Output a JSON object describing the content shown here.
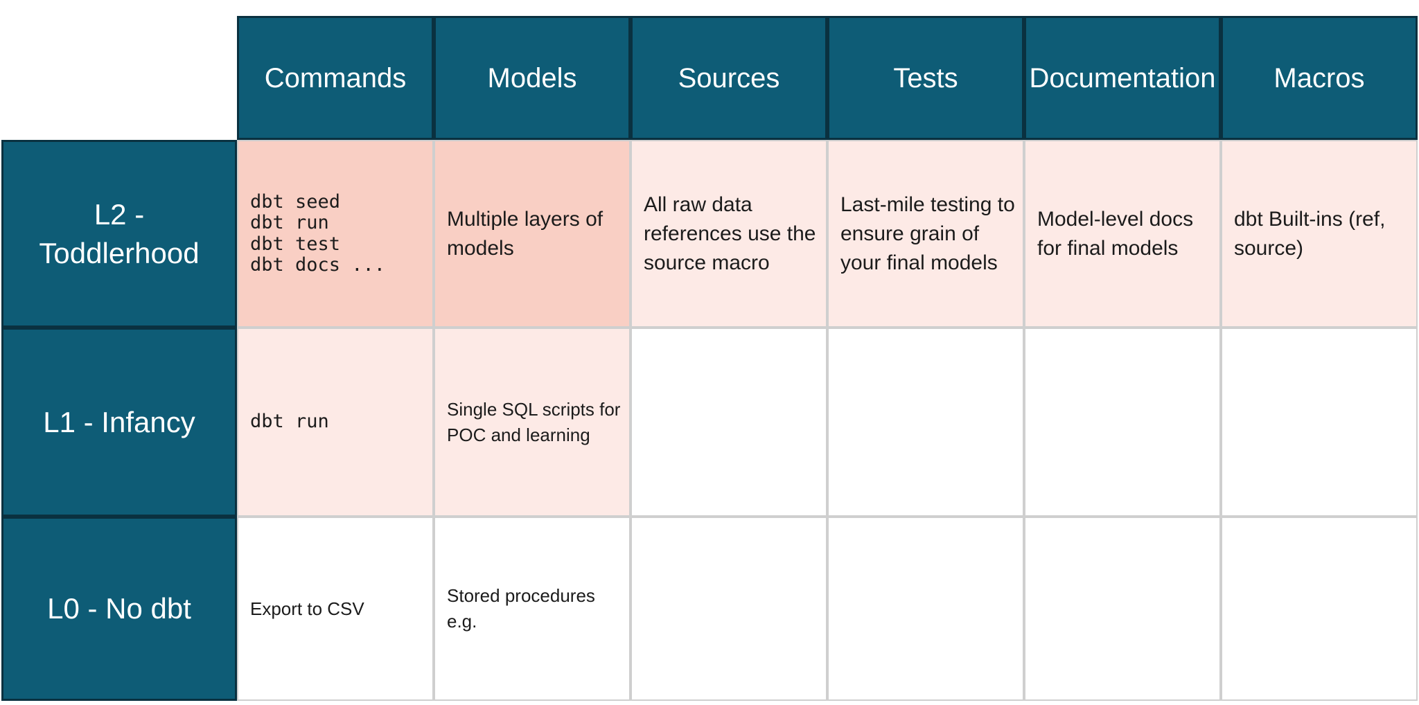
{
  "theme": {
    "colors": {
      "teal": "#0E5C76",
      "teal-dark": "#0A3140",
      "pink-dark": "#F9CFC4",
      "pink-light": "#FDEAE6",
      "line": "#CFCFCF",
      "ink": "#1B1B1B",
      "header-text": "#FFFFFF",
      "bg": "#FFFFFF"
    }
  },
  "table": {
    "columns": [
      {
        "label": "Commands"
      },
      {
        "label": "Models"
      },
      {
        "label": "Sources"
      },
      {
        "label": "Tests"
      },
      {
        "label": "Documentation"
      },
      {
        "label": "Macros"
      }
    ],
    "rows": [
      {
        "label": "L2 -\nToddlerhood",
        "maturity": "L2",
        "cells": [
          {
            "text": "dbt seed\ndbt run\ndbt test\ndbt docs ...",
            "style": "code",
            "tone": "dark"
          },
          {
            "text": "Multiple layers of\nmodels",
            "style": "body",
            "tone": "dark"
          },
          {
            "text": "All raw data\nreferences use the\nsource macro",
            "style": "body",
            "tone": "light"
          },
          {
            "text": "Last-mile testing to\nensure grain of\nyour final models",
            "style": "body",
            "tone": "light"
          },
          {
            "text": "Model-level docs\nfor final models",
            "style": "body",
            "tone": "light"
          },
          {
            "text": "dbt Built-ins (ref,\nsource)",
            "style": "body",
            "tone": "light"
          }
        ]
      },
      {
        "label": "L1 - Infancy",
        "maturity": "L1",
        "cells": [
          {
            "text": "dbt run",
            "style": "code",
            "tone": "light"
          },
          {
            "text": "Single SQL scripts for\nPOC and learning",
            "style": "body-small",
            "tone": "light"
          },
          {
            "text": "",
            "style": "body",
            "tone": "none"
          },
          {
            "text": "",
            "style": "body",
            "tone": "none"
          },
          {
            "text": "",
            "style": "body",
            "tone": "none"
          },
          {
            "text": "",
            "style": "body",
            "tone": "none"
          }
        ]
      },
      {
        "label": "L0 - No dbt",
        "maturity": "L0",
        "cells": [
          {
            "text": "Export to CSV",
            "style": "body-small",
            "tone": "none"
          },
          {
            "text": "Stored procedures\ne.g.",
            "style": "body-small",
            "tone": "none"
          },
          {
            "text": "",
            "style": "body",
            "tone": "none"
          },
          {
            "text": "",
            "style": "body",
            "tone": "none"
          },
          {
            "text": "",
            "style": "body",
            "tone": "none"
          },
          {
            "text": "",
            "style": "body",
            "tone": "none"
          }
        ]
      }
    ]
  }
}
